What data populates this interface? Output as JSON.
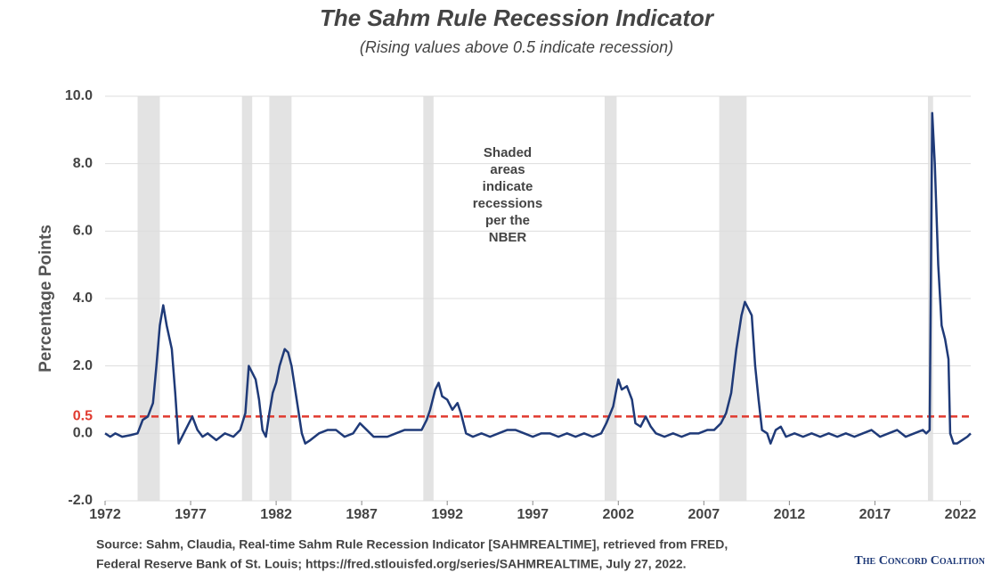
{
  "chart_data": {
    "type": "line",
    "title": "The Sahm Rule Recession Indicator",
    "subtitle": "(Rising values above 0.5 indicate recession)",
    "y_label": "Percentage Points",
    "annotation": [
      "Shaded",
      "areas",
      "indicate",
      "recessions",
      "per the",
      "NBER"
    ],
    "source": [
      "Source: Sahm, Claudia, Real-time Sahm Rule Recession Indicator [SAHMREALTIME], retrieved from FRED,",
      "Federal Reserve Bank of St. Louis; https://fred.stlouisfed.org/series/SAHMREALTIME, July 27, 2022."
    ],
    "logo": "The Concord Coalition",
    "xlim": [
      1972,
      2022.6
    ],
    "xticks": [
      1972,
      1977,
      1982,
      1987,
      1992,
      1997,
      2002,
      2007,
      2012,
      2017,
      2022
    ],
    "ylim": [
      -2,
      10
    ],
    "yticks": [
      {
        "value": -2,
        "label": "-2.0"
      },
      {
        "value": 0,
        "label": "0.0"
      },
      {
        "value": 2,
        "label": "2.0"
      },
      {
        "value": 4,
        "label": "4.0"
      },
      {
        "value": 6,
        "label": "6.0"
      },
      {
        "value": 8,
        "label": "8.0"
      },
      {
        "value": 10,
        "label": "10.0"
      }
    ],
    "grid": true,
    "threshold": {
      "value": 0.5,
      "label": "0.5",
      "color": "#e03a2f"
    },
    "recession_color": "#e3e3e3",
    "recessions": [
      [
        1973.9,
        1975.2
      ],
      [
        1980.0,
        1980.6
      ],
      [
        1981.6,
        1982.9
      ],
      [
        1990.6,
        1991.2
      ],
      [
        2001.2,
        2001.9
      ],
      [
        2007.9,
        2009.5
      ],
      [
        2020.1,
        2020.4
      ]
    ],
    "x": [
      1972.0,
      1972.3,
      1972.6,
      1973.0,
      1973.5,
      1973.9,
      1974.2,
      1974.5,
      1974.8,
      1975.0,
      1975.2,
      1975.4,
      1975.6,
      1975.9,
      1976.1,
      1976.3,
      1976.6,
      1976.9,
      1977.1,
      1977.4,
      1977.7,
      1978.0,
      1978.5,
      1979.0,
      1979.5,
      1979.9,
      1980.2,
      1980.4,
      1980.6,
      1980.8,
      1981.0,
      1981.2,
      1981.4,
      1981.6,
      1981.8,
      1982.0,
      1982.2,
      1982.5,
      1982.7,
      1982.9,
      1983.2,
      1983.5,
      1983.7,
      1984.0,
      1984.5,
      1985.0,
      1985.5,
      1986.0,
      1986.5,
      1986.9,
      1987.3,
      1987.7,
      1988.5,
      1989.0,
      1989.5,
      1990.0,
      1990.5,
      1990.8,
      1991.0,
      1991.3,
      1991.5,
      1991.7,
      1992.0,
      1992.3,
      1992.6,
      1992.8,
      1993.1,
      1993.5,
      1994.0,
      1994.5,
      1995.0,
      1995.5,
      1996.0,
      1996.5,
      1997.0,
      1997.5,
      1998.0,
      1998.5,
      1999.0,
      1999.5,
      2000.0,
      2000.5,
      2001.0,
      2001.3,
      2001.7,
      2002.0,
      2002.2,
      2002.5,
      2002.8,
      2003.0,
      2003.3,
      2003.6,
      2003.9,
      2004.2,
      2004.7,
      2005.2,
      2005.7,
      2006.2,
      2006.7,
      2007.2,
      2007.6,
      2008.0,
      2008.3,
      2008.6,
      2008.9,
      2009.2,
      2009.4,
      2009.6,
      2009.8,
      2010.0,
      2010.2,
      2010.4,
      2010.7,
      2010.9,
      2011.2,
      2011.5,
      2011.8,
      2012.3,
      2012.8,
      2013.3,
      2013.8,
      2014.3,
      2014.8,
      2015.3,
      2015.8,
      2016.3,
      2016.8,
      2017.3,
      2017.8,
      2018.3,
      2018.8,
      2019.3,
      2019.8,
      2020.0,
      2020.2,
      2020.35,
      2020.5,
      2020.7,
      2020.9,
      2021.1,
      2021.3,
      2021.4,
      2021.6,
      2021.8,
      2022.1,
      2022.4,
      2022.6
    ],
    "series": [
      {
        "name": "Sahm Rule",
        "color": "#1f3a78",
        "values": [
          0.0,
          -0.1,
          0.0,
          -0.1,
          -0.05,
          0.0,
          0.4,
          0.5,
          0.9,
          2.0,
          3.2,
          3.8,
          3.2,
          2.5,
          1.2,
          -0.3,
          0.0,
          0.3,
          0.5,
          0.1,
          -0.1,
          0.0,
          -0.2,
          0.0,
          -0.1,
          0.1,
          0.6,
          2.0,
          1.8,
          1.6,
          1.0,
          0.1,
          -0.1,
          0.6,
          1.2,
          1.5,
          2.0,
          2.5,
          2.4,
          2.0,
          1.0,
          0.0,
          -0.3,
          -0.2,
          0.0,
          0.1,
          0.1,
          -0.1,
          0.0,
          0.3,
          0.1,
          -0.1,
          -0.1,
          0.0,
          0.1,
          0.1,
          0.1,
          0.4,
          0.7,
          1.3,
          1.5,
          1.1,
          1.0,
          0.7,
          0.9,
          0.6,
          0.0,
          -0.1,
          0.0,
          -0.1,
          0.0,
          0.1,
          0.1,
          0.0,
          -0.1,
          0.0,
          0.0,
          -0.1,
          0.0,
          -0.1,
          0.0,
          -0.1,
          0.0,
          0.3,
          0.8,
          1.6,
          1.3,
          1.4,
          1.0,
          0.3,
          0.2,
          0.5,
          0.2,
          0.0,
          -0.1,
          0.0,
          -0.1,
          0.0,
          0.0,
          0.1,
          0.1,
          0.3,
          0.6,
          1.2,
          2.5,
          3.5,
          3.9,
          3.7,
          3.5,
          2.0,
          1.0,
          0.1,
          0.0,
          -0.3,
          0.1,
          0.2,
          -0.1,
          0.0,
          -0.1,
          0.0,
          -0.1,
          0.0,
          -0.1,
          0.0,
          -0.1,
          0.0,
          0.1,
          -0.1,
          0.0,
          0.1,
          -0.1,
          0.0,
          0.1,
          0.0,
          0.1,
          9.5,
          8.0,
          5.0,
          3.2,
          2.8,
          2.2,
          0.0,
          -0.3,
          -0.3,
          -0.2,
          -0.1,
          0.0
        ]
      }
    ]
  }
}
